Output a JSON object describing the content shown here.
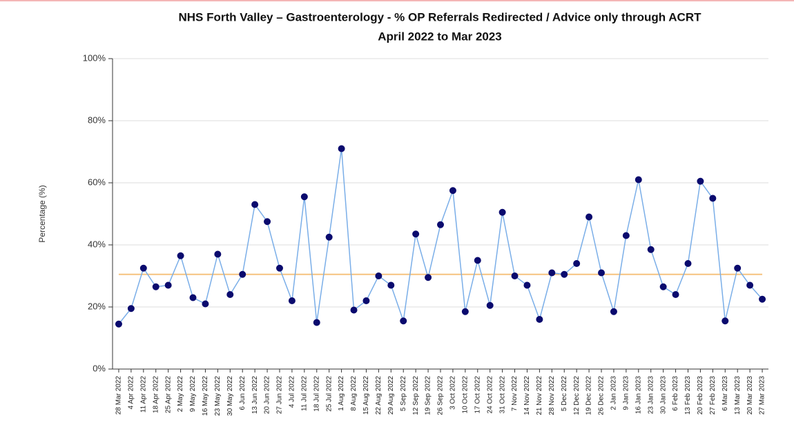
{
  "chart_data": {
    "type": "line",
    "title": "NHS Forth Valley – Gastroenterology - % OP Referrals Redirected / Advice only through ACRT",
    "subtitle": "April 2022 to Mar 2023",
    "y_label": "Percentage (%)",
    "categories": [
      "28 Mar 2022",
      "4 Apr 2022",
      "11 Apr 2022",
      "18 Apr 2022",
      "25 Apr 2022",
      "2 May 2022",
      "9 May 2022",
      "16 May 2022",
      "23 May 2022",
      "30 May 2022",
      "6 Jun 2022",
      "13 Jun 2022",
      "20 Jun 2022",
      "27 Jun 2022",
      "4 Jul 2022",
      "11 Jul 2022",
      "18 Jul 2022",
      "25 Jul 2022",
      "1 Aug 2022",
      "8 Aug 2022",
      "15 Aug 2022",
      "22 Aug 2022",
      "29 Aug 2022",
      "5 Sep 2022",
      "12 Sep 2022",
      "19 Sep 2022",
      "26 Sep 2022",
      "3 Oct 2022",
      "10 Oct 2022",
      "17 Oct 2022",
      "24 Oct 2022",
      "31 Oct 2022",
      "7 Nov 2022",
      "14 Nov 2022",
      "21 Nov 2022",
      "28 Nov 2022",
      "5 Dec 2022",
      "12 Dec 2022",
      "19 Dec 2022",
      "26 Dec 2022",
      "2 Jan 2023",
      "9 Jan 2023",
      "16 Jan 2023",
      "23 Jan 2023",
      "30 Jan 2023",
      "6 Feb 2023",
      "13 Feb 2023",
      "20 Feb 2023",
      "27 Feb 2023",
      "6 Mar 2023",
      "13 Mar 2023",
      "20 Mar 2023",
      "27 Mar 2023"
    ],
    "values": [
      14.5,
      19.5,
      32.5,
      26.5,
      27,
      36.5,
      23,
      21,
      37,
      24,
      30.5,
      53,
      47.5,
      32.5,
      22,
      55.5,
      15,
      42.5,
      71,
      19,
      22,
      30,
      27,
      15.5,
      43.5,
      29.5,
      46.5,
      57.5,
      18.5,
      35,
      20.5,
      50.5,
      30,
      27,
      16,
      31,
      30.5,
      34,
      49,
      31,
      18.5,
      43,
      61,
      38.5,
      26.5,
      24,
      34,
      60.5,
      55,
      15.5,
      32.5,
      27,
      22.5
    ],
    "color": "#7aaee8",
    "marker_color": "#0a0a6e",
    "reference_line": {
      "value": 30.5,
      "color": "#f5c27f"
    },
    "ylim": [
      0,
      100
    ],
    "yticks": [
      {
        "value": 0,
        "label": "0%"
      },
      {
        "value": 20,
        "label": "20%"
      },
      {
        "value": 40,
        "label": "40%"
      },
      {
        "value": 60,
        "label": "60%"
      },
      {
        "value": 80,
        "label": "80%"
      },
      {
        "value": 100,
        "label": "100%"
      }
    ],
    "grid": true
  }
}
